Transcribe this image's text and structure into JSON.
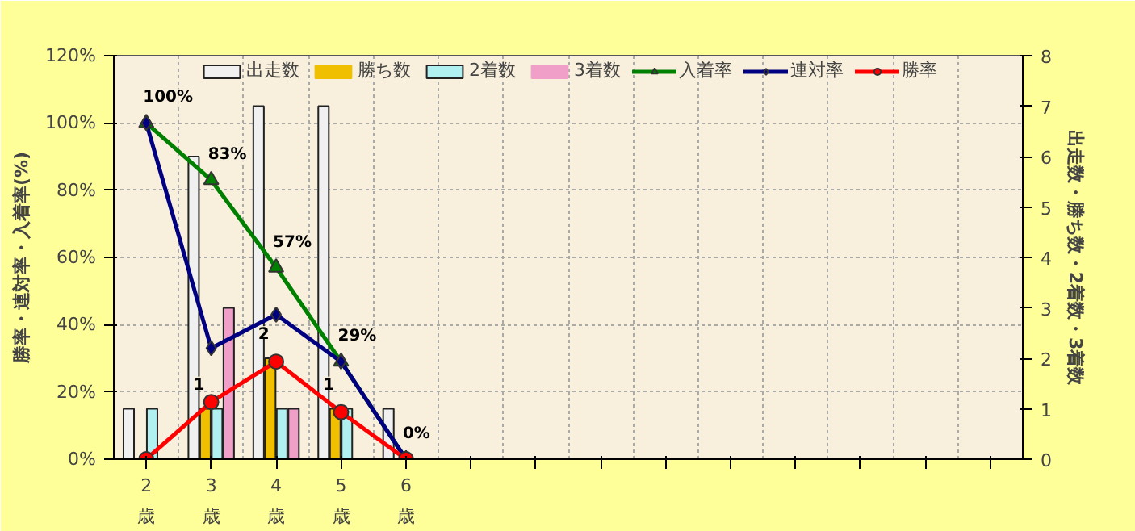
{
  "chart_data": {
    "type": "bar",
    "ylabel": "勝率・連対率・入着率(%)",
    "y2label": "出走数・勝ち数・2着数・3着数",
    "categories": [
      "2\n歳",
      "3\n歳",
      "4\n歳",
      "5\n歳",
      "6\n歳",
      null,
      null,
      null,
      null,
      null,
      null,
      null,
      null,
      null
    ],
    "series": [
      {
        "name": "出走数",
        "type": "bar",
        "axis": "y2",
        "color": "#f0f0f0",
        "values": [
          1,
          6,
          7,
          7,
          1,
          null,
          null,
          null,
          null,
          null,
          null,
          null,
          null,
          null
        ]
      },
      {
        "name": "勝ち数",
        "type": "bar",
        "axis": "y2",
        "color": "#f0c000",
        "values": [
          0,
          1,
          2,
          1,
          0,
          null,
          null,
          null,
          null,
          null,
          null,
          null,
          null,
          null
        ],
        "value_labels": [
          null,
          "1",
          "2",
          "1",
          null,
          null,
          null,
          null,
          null,
          null,
          null,
          null,
          null,
          null
        ]
      },
      {
        "name": "2着数",
        "type": "bar",
        "axis": "y2",
        "color": "#b0f0f0",
        "values": [
          1,
          1,
          1,
          1,
          0,
          null,
          null,
          null,
          null,
          null,
          null,
          null,
          null,
          null
        ]
      },
      {
        "name": "3着数",
        "type": "bar",
        "axis": "y2",
        "color": "#f0a0c8",
        "values": [
          0,
          3,
          1,
          0,
          0,
          null,
          null,
          null,
          null,
          null,
          null,
          null,
          null,
          null
        ]
      },
      {
        "name": "入着率",
        "type": "line",
        "marker": "triangle",
        "color": "#008000",
        "values": [
          100,
          83,
          57,
          29,
          0,
          null,
          null,
          null,
          null,
          null,
          null,
          null,
          null,
          null
        ],
        "value_labels": [
          "100%",
          "83%",
          "57%",
          "29%",
          "0%",
          null,
          null,
          null,
          null,
          null,
          null,
          null,
          null,
          null
        ]
      },
      {
        "name": "連対率",
        "type": "line",
        "marker": "diamond",
        "color": "#000080",
        "values": [
          100,
          33,
          43,
          29,
          0,
          null,
          null,
          null,
          null,
          null,
          null,
          null,
          null,
          null
        ]
      },
      {
        "name": "勝率",
        "type": "line",
        "marker": "circle",
        "color": "#ff0000",
        "values": [
          0,
          17,
          29,
          14,
          0,
          null,
          null,
          null,
          null,
          null,
          null,
          null,
          null,
          null
        ]
      }
    ],
    "ylim": [
      0,
      120
    ],
    "yticks": [
      {
        "value": 0,
        "label": "0%"
      },
      {
        "value": 20,
        "label": "20%"
      },
      {
        "value": 40,
        "label": "40%"
      },
      {
        "value": 60,
        "label": "60%"
      },
      {
        "value": 80,
        "label": "80%"
      },
      {
        "value": 100,
        "label": "100%"
      },
      {
        "value": 120,
        "label": "120%"
      }
    ],
    "y2lim": [
      0,
      8
    ],
    "y2ticks": [
      0,
      1,
      2,
      3,
      4,
      5,
      6,
      7,
      8
    ],
    "grid": true,
    "legend": "top"
  }
}
